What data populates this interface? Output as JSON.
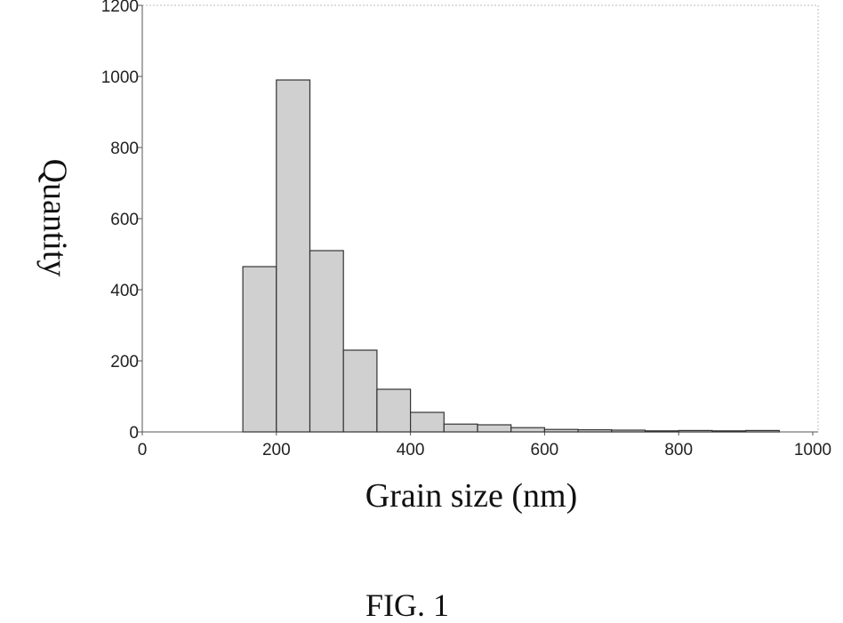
{
  "chart_data": {
    "type": "bar",
    "title": "",
    "xlabel": "Grain size (nm)",
    "ylabel": "Quantity",
    "xlim": [
      0,
      1000
    ],
    "ylim": [
      0,
      1200
    ],
    "xticks": [
      0,
      200,
      400,
      600,
      800,
      1000
    ],
    "yticks": [
      0,
      200,
      400,
      600,
      800,
      1000,
      1200
    ],
    "bin_width": 50,
    "bins": [
      {
        "x0": 0,
        "x1": 50,
        "value": 0
      },
      {
        "x0": 50,
        "x1": 100,
        "value": 0
      },
      {
        "x0": 100,
        "x1": 150,
        "value": 0
      },
      {
        "x0": 150,
        "x1": 200,
        "value": 465
      },
      {
        "x0": 200,
        "x1": 250,
        "value": 990
      },
      {
        "x0": 250,
        "x1": 300,
        "value": 510
      },
      {
        "x0": 300,
        "x1": 350,
        "value": 230
      },
      {
        "x0": 350,
        "x1": 400,
        "value": 120
      },
      {
        "x0": 400,
        "x1": 450,
        "value": 55
      },
      {
        "x0": 450,
        "x1": 500,
        "value": 22
      },
      {
        "x0": 500,
        "x1": 550,
        "value": 20
      },
      {
        "x0": 550,
        "x1": 600,
        "value": 12
      },
      {
        "x0": 600,
        "x1": 650,
        "value": 7
      },
      {
        "x0": 650,
        "x1": 700,
        "value": 6
      },
      {
        "x0": 700,
        "x1": 750,
        "value": 5
      },
      {
        "x0": 750,
        "x1": 800,
        "value": 3
      },
      {
        "x0": 800,
        "x1": 850,
        "value": 4
      },
      {
        "x0": 850,
        "x1": 900,
        "value": 3
      },
      {
        "x0": 900,
        "x1": 950,
        "value": 4
      }
    ],
    "grid": false
  },
  "figure": {
    "caption": "FIG. 1"
  }
}
